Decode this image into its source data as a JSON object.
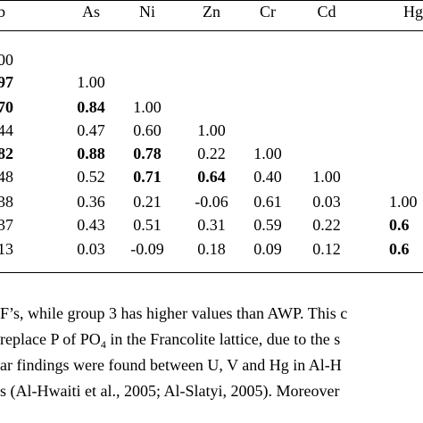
{
  "table": {
    "headers": [
      "b",
      "As",
      "Ni",
      "Zn",
      "Cr",
      "Cd",
      "Hg"
    ],
    "rows": [
      [
        {
          "v": "00"
        }
      ],
      [
        {
          "v": "97",
          "b": true
        },
        {
          "v": "1.00"
        }
      ],
      [
        {
          "v": "70",
          "b": true
        },
        {
          "v": "0.84",
          "b": true
        },
        {
          "v": "1.00"
        }
      ],
      [
        {
          "v": "44"
        },
        {
          "v": "0.47"
        },
        {
          "v": "0.60"
        },
        {
          "v": "1.00"
        }
      ],
      [
        {
          "v": "82",
          "b": true
        },
        {
          "v": "0.88",
          "b": true
        },
        {
          "v": "0.78",
          "b": true
        },
        {
          "v": "0.22"
        },
        {
          "v": "1.00"
        }
      ],
      [
        {
          "v": "48"
        },
        {
          "v": "0.52"
        },
        {
          "v": "0.71",
          "b": true
        },
        {
          "v": "0.64",
          "b": true
        },
        {
          "v": "0.40"
        },
        {
          "v": "1.00"
        }
      ],
      [
        {
          "v": "38"
        },
        {
          "v": "0.36"
        },
        {
          "v": "0.21"
        },
        {
          "v": "-0.06"
        },
        {
          "v": "0.61"
        },
        {
          "v": "0.03"
        },
        {
          "v": "1.00"
        }
      ],
      [
        {
          "v": "37"
        },
        {
          "v": "0.43"
        },
        {
          "v": "0.51"
        },
        {
          "v": "0.31"
        },
        {
          "v": "0.59"
        },
        {
          "v": "0.22"
        },
        {
          "v": "0.6",
          "b": true
        }
      ],
      [
        {
          "v": "13"
        },
        {
          "v": "0.03"
        },
        {
          "v": "-0.09"
        },
        {
          "v": "0.18"
        },
        {
          "v": "0.09"
        },
        {
          "v": "0.12"
        },
        {
          "v": "0.6",
          "b": true
        }
      ]
    ]
  },
  "paragraph": {
    "line1": "F’s, while group 3 has higher values than AWP. This c",
    "line2_pre": " replace P of PO",
    "line2_sub": "4",
    "line2_post": " in the Francolite lattice, due to the s",
    "line3": "ar findings were found between U, V and Hg in Al-H",
    "line4": "s (Al-Hwaiti et al., 2005; Al-Slatyi, 2005). Moreover"
  }
}
